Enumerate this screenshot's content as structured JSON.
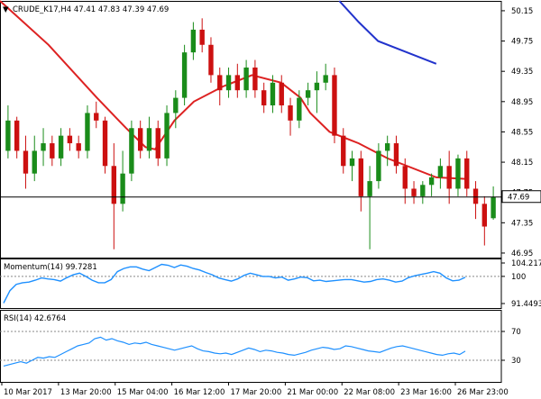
{
  "chart_data": [
    {
      "type": "candlestick",
      "title": "CRUDE_K17,H4  47.41 47.83 47.39 47.69",
      "symbol": "CRUDE_K17",
      "timeframe": "H4",
      "ohlc_header": {
        "open": 47.41,
        "high": 47.83,
        "low": 47.39,
        "close": 47.69
      },
      "yticks": [
        "50.15",
        "49.75",
        "49.35",
        "48.95",
        "48.55",
        "48.15",
        "47.75",
        "47.35",
        "46.95"
      ],
      "ylim": [
        46.89,
        50.28
      ],
      "current_price": "47.69",
      "up_color": "#1a8c1a",
      "down_color": "#cc1010",
      "candles": [
        [
          48.3,
          48.9,
          48.2,
          48.7
        ],
        [
          48.7,
          48.75,
          48.2,
          48.3
        ],
        [
          48.3,
          48.5,
          47.8,
          48.0
        ],
        [
          48.0,
          48.5,
          47.9,
          48.3
        ],
        [
          48.3,
          48.6,
          48.1,
          48.4
        ],
        [
          48.4,
          48.5,
          48.1,
          48.2
        ],
        [
          48.2,
          48.6,
          48.1,
          48.5
        ],
        [
          48.5,
          48.6,
          48.3,
          48.4
        ],
        [
          48.4,
          48.5,
          48.2,
          48.3
        ],
        [
          48.3,
          48.9,
          48.2,
          48.8
        ],
        [
          48.8,
          48.95,
          48.6,
          48.7
        ],
        [
          48.7,
          48.75,
          48.0,
          48.1
        ],
        [
          48.1,
          48.4,
          47.0,
          47.6
        ],
        [
          47.6,
          48.3,
          47.5,
          48.0
        ],
        [
          48.0,
          48.7,
          47.9,
          48.6
        ],
        [
          48.6,
          48.7,
          48.2,
          48.3
        ],
        [
          48.3,
          48.75,
          48.2,
          48.6
        ],
        [
          48.6,
          48.7,
          48.1,
          48.2
        ],
        [
          48.2,
          48.9,
          48.1,
          48.8
        ],
        [
          48.8,
          49.1,
          48.6,
          49.0
        ],
        [
          49.0,
          49.7,
          48.9,
          49.6
        ],
        [
          49.6,
          50.0,
          49.5,
          49.9
        ],
        [
          49.9,
          50.05,
          49.6,
          49.7
        ],
        [
          49.7,
          49.8,
          49.2,
          49.3
        ],
        [
          49.3,
          49.4,
          48.9,
          49.1
        ],
        [
          49.1,
          49.4,
          49.0,
          49.3
        ],
        [
          49.3,
          49.45,
          49.0,
          49.1
        ],
        [
          49.1,
          49.5,
          49.0,
          49.4
        ],
        [
          49.4,
          49.5,
          49.0,
          49.1
        ],
        [
          49.1,
          49.2,
          48.8,
          48.9
        ],
        [
          48.9,
          49.3,
          48.8,
          49.2
        ],
        [
          49.2,
          49.3,
          48.8,
          48.9
        ],
        [
          48.9,
          49.0,
          48.5,
          48.7
        ],
        [
          48.7,
          49.1,
          48.6,
          49.0
        ],
        [
          49.0,
          49.2,
          48.9,
          49.1
        ],
        [
          49.1,
          49.35,
          48.8,
          49.2
        ],
        [
          49.2,
          49.45,
          49.1,
          49.3
        ],
        [
          49.3,
          49.4,
          48.4,
          48.5
        ],
        [
          48.5,
          48.6,
          48.0,
          48.1
        ],
        [
          48.1,
          48.3,
          47.9,
          48.2
        ],
        [
          48.2,
          48.3,
          47.5,
          47.7
        ],
        [
          47.7,
          48.1,
          47.0,
          47.9
        ],
        [
          47.9,
          48.4,
          47.8,
          48.3
        ],
        [
          48.3,
          48.5,
          48.1,
          48.4
        ],
        [
          48.4,
          48.5,
          48.0,
          48.1
        ],
        [
          48.1,
          48.2,
          47.6,
          47.8
        ],
        [
          47.8,
          47.9,
          47.6,
          47.7
        ],
        [
          47.7,
          47.9,
          47.6,
          47.85
        ],
        [
          47.85,
          48.0,
          47.7,
          47.95
        ],
        [
          47.95,
          48.2,
          47.8,
          48.1
        ],
        [
          48.1,
          48.3,
          47.6,
          47.8
        ],
        [
          47.8,
          48.25,
          47.7,
          48.2
        ],
        [
          48.2,
          48.3,
          47.7,
          47.8
        ],
        [
          47.8,
          47.9,
          47.4,
          47.6
        ],
        [
          47.6,
          47.7,
          47.05,
          47.3
        ],
        [
          47.41,
          47.83,
          47.39,
          47.69
        ]
      ],
      "ma1": {
        "color": "#dd2222",
        "points": [
          [
            0,
            50.3
          ],
          [
            10,
            49.7
          ],
          [
            20,
            49.0
          ],
          [
            26,
            48.6
          ],
          [
            30,
            48.35
          ],
          [
            32,
            48.32
          ],
          [
            36,
            48.7
          ],
          [
            40,
            48.95
          ],
          [
            46,
            49.15
          ],
          [
            52,
            49.3
          ],
          [
            58,
            49.2
          ],
          [
            62,
            49.0
          ],
          [
            64,
            48.8
          ],
          [
            68,
            48.55
          ],
          [
            74,
            48.4
          ],
          [
            80,
            48.2
          ],
          [
            90,
            47.95
          ],
          [
            96,
            47.93
          ]
        ]
      },
      "ma2": {
        "color": "#2233cc",
        "points": [
          [
            70,
            50.3
          ],
          [
            74,
            50.0
          ],
          [
            78,
            49.75
          ],
          [
            84,
            49.6
          ],
          [
            90,
            49.45
          ]
        ]
      },
      "xticks": [
        "10 Mar 2017",
        "13 Mar 20:00",
        "15 Mar 04:00",
        "16 Mar 12:00",
        "17 Mar 20:00",
        "21 Mar 00:00",
        "22 Mar 08:00",
        "23 Mar 16:00",
        "26 Mar 23:00"
      ]
    },
    {
      "type": "line",
      "title": "Momentum(14) 99.7281",
      "yticks": [
        "104.2171",
        "100",
        "91.4493"
      ],
      "ylim": [
        91.4493,
        104.2171
      ],
      "level": 100,
      "color": "#1e90ff",
      "series": [
        {
          "values": [
            91.6,
            95.5,
            97.5,
            98.0,
            98.2,
            98.8,
            99.5,
            99.2,
            99.0,
            98.5,
            99.6,
            100.5,
            101.0,
            100.0,
            98.8,
            98.0,
            98.0,
            99.0,
            101.5,
            102.5,
            103.0,
            103.0,
            102.3,
            101.8,
            102.8,
            103.8,
            103.5,
            102.8,
            103.6,
            103.2,
            102.5,
            102.0,
            101.2,
            100.5,
            99.5,
            99.0,
            98.5,
            99.2,
            100.3,
            101.0,
            100.5,
            100.0,
            100.0,
            99.5,
            99.8,
            98.8,
            99.2,
            99.8,
            99.6,
            98.6,
            98.8,
            98.4,
            98.6,
            98.8,
            99.0,
            99.0,
            98.6,
            98.2,
            98.4,
            99.0,
            99.2,
            98.8,
            98.2,
            98.5,
            99.6,
            100.2,
            100.6,
            101.0,
            101.5,
            101.0,
            99.5,
            98.6,
            98.8,
            99.7
          ]
        }
      ]
    },
    {
      "type": "line",
      "title": "RSI(14) 42.6764",
      "yticks": [
        "70",
        "30"
      ],
      "ylim": [
        0,
        100
      ],
      "levels": [
        70,
        30
      ],
      "color": "#1e90ff",
      "series": [
        {
          "values": [
            22,
            24,
            26,
            28,
            26,
            30,
            34,
            33,
            35,
            34,
            38,
            42,
            46,
            50,
            52,
            54,
            60,
            62,
            58,
            60,
            57,
            55,
            52,
            54,
            53,
            55,
            52,
            50,
            48,
            46,
            44,
            46,
            48,
            50,
            46,
            43,
            42,
            40,
            39,
            40,
            38,
            41,
            44,
            47,
            45,
            42,
            44,
            43,
            41,
            40,
            38,
            37,
            39,
            41,
            44,
            46,
            48,
            47,
            45,
            46,
            50,
            49,
            47,
            45,
            43,
            42,
            41,
            44,
            47,
            49,
            50,
            48,
            46,
            44,
            42,
            40,
            38,
            37,
            39,
            40,
            38,
            42.68
          ]
        }
      ]
    }
  ]
}
